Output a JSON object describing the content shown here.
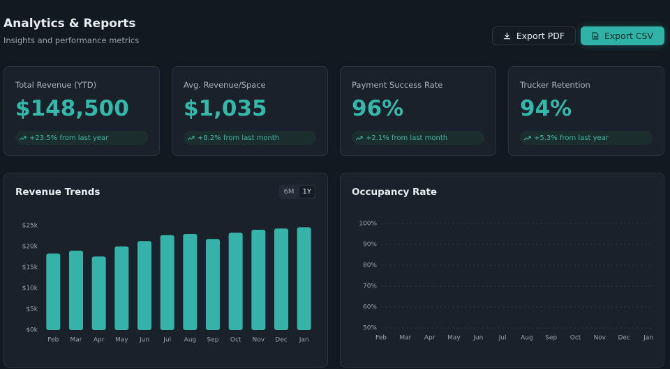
{
  "header": {
    "title": "Analytics & Reports",
    "subtitle": "Insights and performance metrics",
    "buttons": [
      "Export PDF",
      "Export CSV"
    ]
  },
  "kpis": [
    {
      "label": "Total Revenue (YTD)",
      "value": "$148,500",
      "change": "+23.5% from last year"
    },
    {
      "label": "Avg. Revenue/Space",
      "value": "$1,035",
      "change": "+8.2% from last month"
    },
    {
      "label": "Payment Success Rate",
      "value": "96%",
      "change": "+2.1% from last month"
    },
    {
      "label": "Trucker Retention",
      "value": "94%",
      "change": "+5.3% from last year"
    }
  ],
  "chart_data": [
    {
      "type": "bar",
      "title": "Revenue Trends",
      "toggle": [
        "6M",
        "1Y"
      ],
      "color": "#35b3a8",
      "categories": [
        "Feb",
        "Mar",
        "Apr",
        "May",
        "Jun",
        "Jul",
        "Aug",
        "Sep",
        "Oct",
        "Nov",
        "Dec",
        "Jan"
      ],
      "values": [
        18300,
        19000,
        17600,
        20000,
        21300,
        22700,
        23000,
        21800,
        23300,
        24000,
        24300,
        24600
      ],
      "ylim": [
        0,
        25000
      ],
      "yticks": [
        {
          "value": 0,
          "label": "$0k"
        },
        {
          "value": 5000,
          "label": "$5k"
        },
        {
          "value": 10000,
          "label": "$10k"
        },
        {
          "value": 15000,
          "label": "$15k"
        },
        {
          "value": 20000,
          "label": "$20k"
        },
        {
          "value": 25000,
          "label": "$25k"
        }
      ],
      "grid": false
    },
    {
      "type": "line",
      "title": "Occupancy Rate",
      "categories": [
        "Feb",
        "Mar",
        "Apr",
        "May",
        "Jun",
        "Jul",
        "Aug",
        "Sep",
        "Oct",
        "Nov",
        "Dec",
        "Jan"
      ],
      "series": [],
      "ylim": [
        50,
        100
      ],
      "yticks": [
        {
          "value": 50,
          "label": "50%"
        },
        {
          "value": 60,
          "label": "60%"
        },
        {
          "value": 70,
          "label": "70%"
        },
        {
          "value": 80,
          "label": "80%"
        },
        {
          "value": 90,
          "label": "90%"
        },
        {
          "value": 100,
          "label": "100%"
        }
      ],
      "grid": true
    }
  ]
}
